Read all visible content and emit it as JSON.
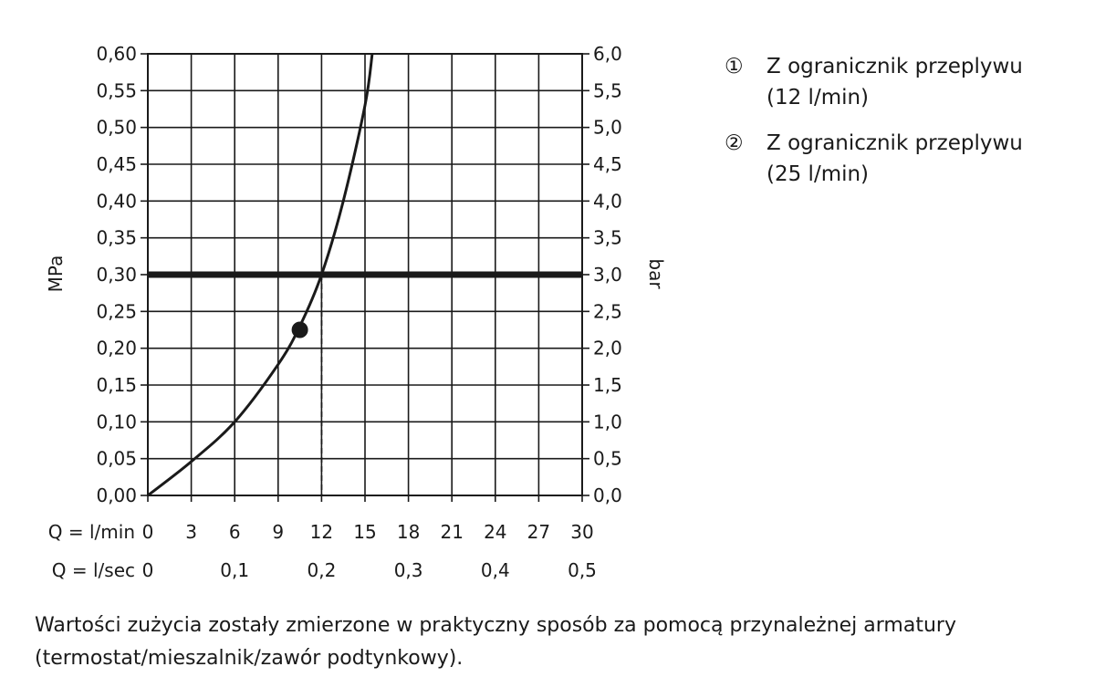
{
  "chart_data": {
    "type": "line",
    "ylabel": "MPa",
    "ylabel_right": "bar",
    "ylim": [
      0,
      0.6
    ],
    "xlim": [
      0,
      30
    ],
    "yticks_left": [
      "0,00",
      "0,05",
      "0,10",
      "0,15",
      "0,20",
      "0,25",
      "0,30",
      "0,35",
      "0,40",
      "0,45",
      "0,50",
      "0,55",
      "0,60"
    ],
    "yticks_right": [
      "0,0",
      "0,5",
      "1,0",
      "1,5",
      "2,0",
      "2,5",
      "3,0",
      "3,5",
      "4,0",
      "4,5",
      "5,0",
      "5,5",
      "6,0"
    ],
    "x_rows": [
      {
        "label": "Q = l/min",
        "ticks": [
          "0",
          "3",
          "6",
          "9",
          "12",
          "15",
          "18",
          "21",
          "24",
          "27",
          "30"
        ],
        "positions": [
          0,
          3,
          6,
          9,
          12,
          15,
          18,
          21,
          24,
          27,
          30
        ]
      },
      {
        "label": "Q = l/sec",
        "ticks": [
          "0",
          "0,1",
          "0,2",
          "0,3",
          "0,4",
          "0,5"
        ],
        "positions": [
          0,
          6,
          12,
          18,
          24,
          30
        ]
      }
    ],
    "grid": true,
    "series": [
      {
        "x": [
          0,
          3,
          6,
          9,
          10.5,
          12,
          13.5,
          15,
          15.5
        ],
        "y": [
          0,
          0.046,
          0.1,
          0.178,
          0.23,
          0.3,
          0.4,
          0.53,
          0.6
        ]
      }
    ],
    "reference_line": {
      "y": 0.3
    },
    "marker": {
      "x": 10.5,
      "y": 0.225
    },
    "drop_line": {
      "x": 12,
      "y": 0.3
    }
  },
  "legend": [
    {
      "number": "①",
      "text": "Z ogranicznik przeplywu\n(12 l/min)"
    },
    {
      "number": "②",
      "text": "Z ogranicznik przeplywu\n(25 l/min)"
    }
  ],
  "footnote": "Wartości zużycia zostały zmierzone w praktyczny sposób za pomocą przynależnej armatury (termostat/mieszalnik/zawór podtynkowy)."
}
